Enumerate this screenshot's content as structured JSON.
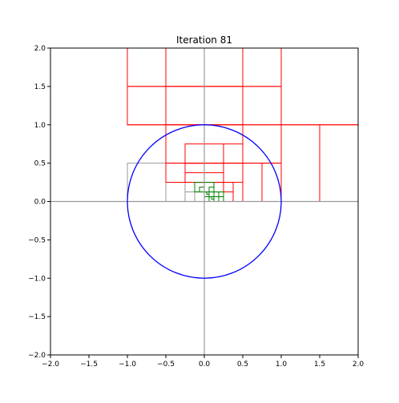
{
  "chart_data": {
    "type": "line",
    "title": "Iteration 81",
    "xlabel": "",
    "ylabel": "",
    "xlim": [
      -2.0,
      2.0
    ],
    "ylim": [
      -2.0,
      2.0
    ],
    "grid": false,
    "legend": "none",
    "x_ticks": [
      -2.0,
      -1.5,
      -1.0,
      -0.5,
      0.0,
      0.5,
      1.0,
      1.5,
      2.0
    ],
    "y_ticks": [
      -2.0,
      -1.5,
      -1.0,
      -0.5,
      0.0,
      0.5,
      1.0,
      1.5,
      2.0
    ],
    "x_tick_labels": [
      "−2.0",
      "−1.5",
      "−1.0",
      "−0.5",
      "0.0",
      "0.5",
      "1.0",
      "1.5",
      "2.0"
    ],
    "y_tick_labels": [
      "−2.0",
      "−1.5",
      "−1.0",
      "−0.5",
      "0.0",
      "0.5",
      "1.0",
      "1.5",
      "2.0"
    ],
    "circle": {
      "cx": 0.0,
      "cy": 0.0,
      "r": 1.0,
      "color": "#0000ff"
    },
    "axis_lines": {
      "color": "#999999"
    },
    "rect_colors": {
      "red": "#ff0000",
      "gray": "#999999",
      "green": "#008000"
    },
    "rectangles": {
      "red": [
        [
          -1,
          1,
          1,
          2
        ],
        [
          1,
          0,
          2,
          1
        ],
        [
          -1,
          1.5,
          0.5,
          2
        ],
        [
          -0.5,
          1.5,
          0,
          2
        ],
        [
          0,
          1.5,
          0.5,
          2
        ],
        [
          0.5,
          1.5,
          1,
          2
        ],
        [
          -1,
          1,
          -0.5,
          1.5
        ],
        [
          -0.5,
          1,
          0,
          1.5
        ],
        [
          0,
          1,
          0.5,
          1.5
        ],
        [
          0.5,
          1,
          1,
          1.5
        ],
        [
          1,
          0,
          1.5,
          1
        ],
        [
          1.5,
          0,
          2,
          1
        ],
        [
          -0.5,
          0.5,
          0.5,
          1
        ],
        [
          -0.5,
          0.25,
          0,
          0.5
        ],
        [
          0.5,
          0,
          1,
          0.5
        ],
        [
          0.5,
          0,
          0.75,
          0.5
        ],
        [
          0.75,
          0,
          1,
          0.5
        ],
        [
          -0.25,
          0.5,
          0.25,
          0.75
        ],
        [
          0.25,
          0.5,
          0.5,
          0.75
        ],
        [
          0.25,
          0.25,
          0.5,
          0.5
        ],
        [
          -0.25,
          0.25,
          0.25,
          0.5
        ],
        [
          -0.25,
          0.375,
          0,
          0.5
        ],
        [
          0,
          0.375,
          0.25,
          0.5
        ],
        [
          -0.125,
          0.125,
          0.125,
          0.25
        ],
        [
          0.125,
          0,
          0.375,
          0.25
        ],
        [
          0.125,
          0.125,
          0.25,
          0.25
        ],
        [
          0.25,
          0,
          0.375,
          0.125
        ]
      ],
      "gray": [
        [
          -1,
          0,
          -0.5,
          0.5
        ],
        [
          -0.5,
          0,
          -0.25,
          0.25
        ],
        [
          -0.25,
          0,
          -0.125,
          0.125
        ],
        [
          -0.125,
          0.125,
          0,
          0.25
        ]
      ],
      "green": [
        [
          -0.125,
          0.125,
          0,
          0.25
        ],
        [
          -0.0625,
          0.125,
          0,
          0.1875
        ],
        [
          0,
          0.125,
          0.125,
          0.25
        ],
        [
          0.0625,
          0.125,
          0.125,
          0.1875
        ],
        [
          0,
          0,
          0.125,
          0.125
        ],
        [
          0.0625,
          0,
          0.125,
          0.0625
        ],
        [
          0,
          0.0625,
          0.0625,
          0.125
        ],
        [
          0.125,
          0,
          0.25,
          0.125
        ],
        [
          0.1875,
          0,
          0.25,
          0.0625
        ],
        [
          0.125,
          0.0625,
          0.1875,
          0.125
        ],
        [
          0.03125,
          0.09375,
          0.0625,
          0.125
        ],
        [
          0.09375,
          0.03125,
          0.125,
          0.0625
        ]
      ]
    }
  }
}
